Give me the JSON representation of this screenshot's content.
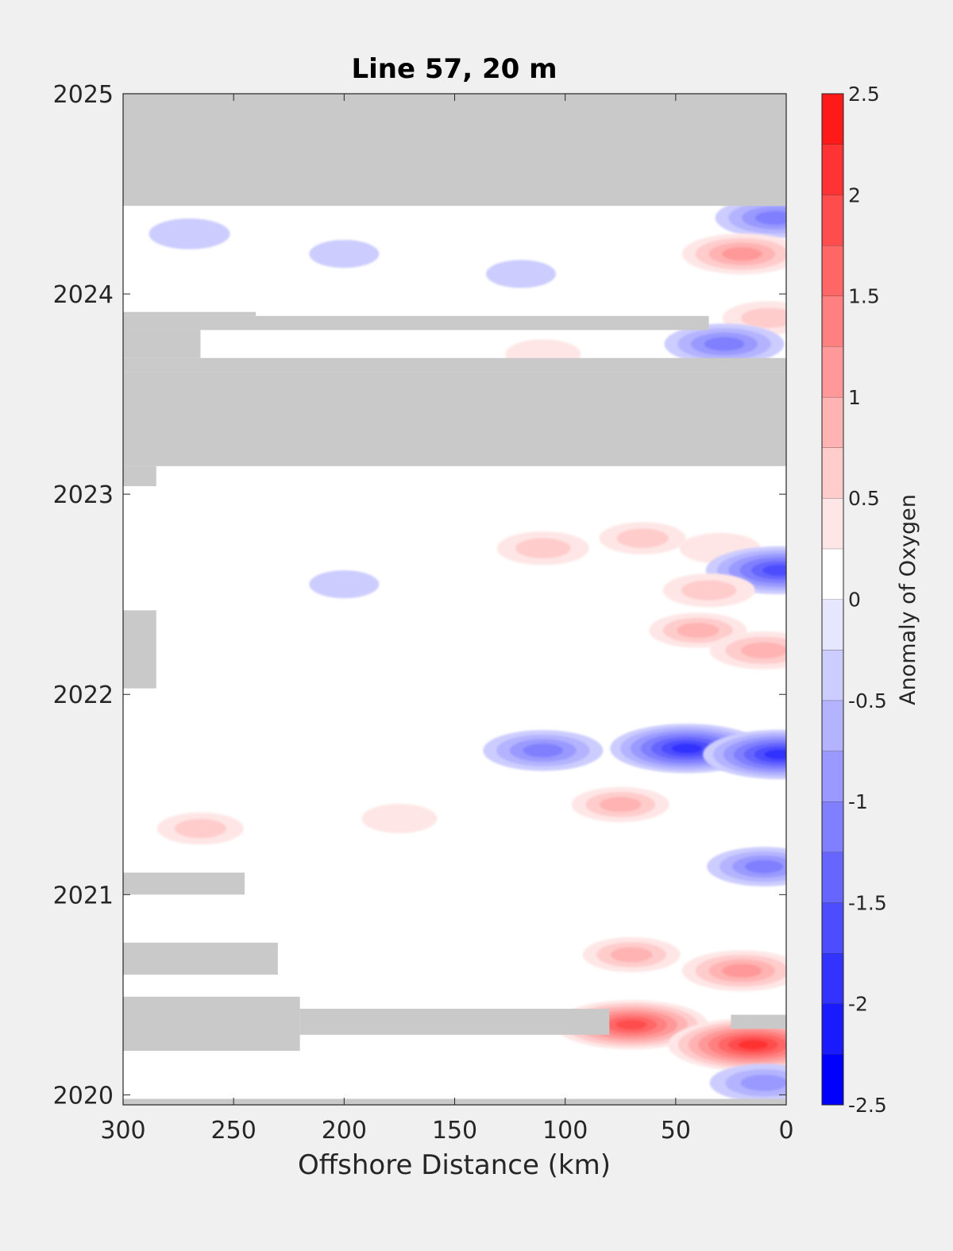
{
  "chart_data": {
    "type": "heatmap",
    "title": "Line 57, 20 m",
    "xlabel": "Offshore Distance (km)",
    "ylabel": "",
    "xlim": [
      300,
      0
    ],
    "ylim": [
      2019.95,
      2025
    ],
    "x_reversed": true,
    "x_ticks": [
      300,
      250,
      200,
      150,
      100,
      50,
      0
    ],
    "y_ticks": [
      2020,
      2021,
      2022,
      2023,
      2024,
      2025
    ],
    "grid": false,
    "colorbar": {
      "label": "Anomaly of Oxygen",
      "range": [
        -2.5,
        2.5
      ],
      "ticks": [
        2.5,
        2,
        1.5,
        1,
        0.5,
        0,
        -0.5,
        -1,
        -1.5,
        -2,
        -2.5
      ],
      "levels": [
        -2.5,
        -2.25,
        -2,
        -1.75,
        -1.5,
        -1.25,
        -1,
        -0.75,
        -0.5,
        -0.25,
        0,
        0.25,
        0.5,
        0.75,
        1,
        1.25,
        1.5,
        1.75,
        2,
        2.25,
        2.5
      ],
      "colors": [
        "#0000ff",
        "#1a1aff",
        "#3333ff",
        "#4d4dff",
        "#6666ff",
        "#8080ff",
        "#9999ff",
        "#b3b3ff",
        "#ccccff",
        "#e6e6ff",
        "#ffffff",
        "#ffffff",
        "#ffe6e6",
        "#ffcccc",
        "#ffb3b3",
        "#ff9999",
        "#ff8080",
        "#ff6666",
        "#ff4d4d",
        "#ff3333",
        "#ff1a1a",
        "#ff0000"
      ]
    },
    "no_data_color": "#c9c9c9",
    "no_data_bands": [
      {
        "x_from": 300,
        "x_to": 0,
        "y_from": 2024.44,
        "y_to": 2025
      },
      {
        "x_from": 300,
        "x_to": 0,
        "y_from": 2023.14,
        "y_to": 2023.61
      },
      {
        "x_from": 300,
        "x_to": 0,
        "y_from": 2023.61,
        "y_to": 2023.68
      },
      {
        "x_from": 300,
        "x_to": 265,
        "y_from": 2023.68,
        "y_to": 2023.82
      },
      {
        "x_from": 300,
        "x_to": 35,
        "y_from": 2023.82,
        "y_to": 2023.89
      },
      {
        "x_from": 300,
        "x_to": 240,
        "y_from": 2023.89,
        "y_to": 2023.91
      },
      {
        "x_from": 300,
        "x_to": 285,
        "y_from": 2023.04,
        "y_to": 2023.14
      },
      {
        "x_from": 300,
        "x_to": 285,
        "y_from": 2022.03,
        "y_to": 2022.42
      },
      {
        "x_from": 300,
        "x_to": 245,
        "y_from": 2021.0,
        "y_to": 2021.11
      },
      {
        "x_from": 300,
        "x_to": 230,
        "y_from": 2020.6,
        "y_to": 2020.76
      },
      {
        "x_from": 300,
        "x_to": 220,
        "y_from": 2020.22,
        "y_to": 2020.49
      },
      {
        "x_from": 220,
        "x_to": 80,
        "y_from": 2020.3,
        "y_to": 2020.43
      },
      {
        "x_from": 25,
        "x_to": 0,
        "y_from": 2020.33,
        "y_to": 2020.4
      },
      {
        "x_from": 300,
        "x_to": 0,
        "y_from": 2019.95,
        "y_to": 2019.98
      }
    ],
    "anomaly_features": [
      {
        "x": 270,
        "y": 2024.3,
        "value": -0.6
      },
      {
        "x": 200,
        "y": 2024.2,
        "value": -0.4
      },
      {
        "x": 120,
        "y": 2024.1,
        "value": -0.4
      },
      {
        "x": 5,
        "y": 2024.38,
        "value": -1.3
      },
      {
        "x": 20,
        "y": 2024.2,
        "value": 1.3
      },
      {
        "x": 8,
        "y": 2023.88,
        "value": 0.8
      },
      {
        "x": 28,
        "y": 2023.75,
        "value": -1.3
      },
      {
        "x": 110,
        "y": 2023.7,
        "value": 0.5
      },
      {
        "x": 110,
        "y": 2022.73,
        "value": 0.8
      },
      {
        "x": 65,
        "y": 2022.78,
        "value": 0.7
      },
      {
        "x": 30,
        "y": 2022.73,
        "value": 0.6
      },
      {
        "x": 3,
        "y": 2022.62,
        "value": -1.8
      },
      {
        "x": 35,
        "y": 2022.52,
        "value": 0.8
      },
      {
        "x": 40,
        "y": 2022.32,
        "value": 0.9
      },
      {
        "x": 10,
        "y": 2022.22,
        "value": 1.1
      },
      {
        "x": 200,
        "y": 2022.55,
        "value": -0.4
      },
      {
        "x": 110,
        "y": 2021.72,
        "value": -1.3
      },
      {
        "x": 45,
        "y": 2021.73,
        "value": -1.9
      },
      {
        "x": 3,
        "y": 2021.7,
        "value": -1.9
      },
      {
        "x": 75,
        "y": 2021.45,
        "value": 0.9
      },
      {
        "x": 265,
        "y": 2021.33,
        "value": 0.7
      },
      {
        "x": 175,
        "y": 2021.38,
        "value": 0.5
      },
      {
        "x": 10,
        "y": 2021.14,
        "value": -1.2
      },
      {
        "x": 70,
        "y": 2020.7,
        "value": 0.9
      },
      {
        "x": 20,
        "y": 2020.62,
        "value": 1.3
      },
      {
        "x": 70,
        "y": 2020.35,
        "value": 1.9
      },
      {
        "x": 15,
        "y": 2020.25,
        "value": 2.2
      },
      {
        "x": 10,
        "y": 2020.06,
        "value": -1.1
      }
    ]
  }
}
